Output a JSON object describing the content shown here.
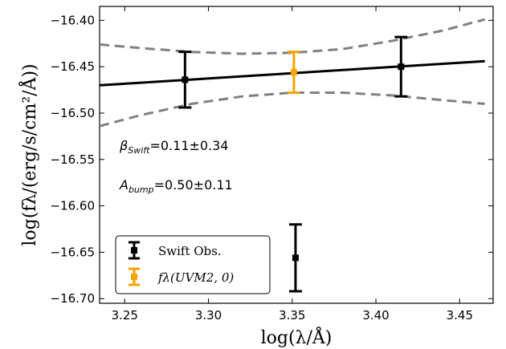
{
  "chart_data": {
    "type": "scatter",
    "xlabel": "log(λ/Å)",
    "ylabel": "log(fλ/(erg/s/cm²/Å))",
    "xlim": [
      3.235,
      3.47
    ],
    "ylim": [
      -16.705,
      -16.385
    ],
    "xticks": [
      3.25,
      3.3,
      3.35,
      3.4,
      3.45
    ],
    "xtick_labels": [
      "3.25",
      "3.30",
      "3.35",
      "3.40",
      "3.45"
    ],
    "yticks": [
      -16.4,
      -16.45,
      -16.5,
      -16.55,
      -16.6,
      -16.65,
      -16.7
    ],
    "ytick_labels": [
      "−16.40",
      "−16.45",
      "−16.50",
      "−16.55",
      "−16.60",
      "−16.65",
      "−16.70"
    ],
    "grid": false,
    "legend_position": "lower-left",
    "series": [
      {
        "name": "Swift Obs.",
        "color": "#000000",
        "points": [
          {
            "x": 3.286,
            "y": -16.464,
            "yerr": 0.03
          },
          {
            "x": 3.415,
            "y": -16.45,
            "yerr": 0.032
          },
          {
            "x": 3.352,
            "y": -16.656,
            "yerr": 0.036
          }
        ]
      },
      {
        "name": "fλ(UVM2, 0)",
        "color": "#f5a300",
        "points": [
          {
            "x": 3.351,
            "y": -16.456,
            "yerr": 0.022
          }
        ]
      }
    ],
    "fit_line": {
      "x": [
        3.235,
        3.465
      ],
      "y": [
        -16.47,
        -16.444
      ],
      "color": "#000000"
    },
    "confidence_band": {
      "color": "#808080",
      "upper": {
        "x": [
          3.235,
          3.26,
          3.29,
          3.32,
          3.35,
          3.38,
          3.41,
          3.44,
          3.465
        ],
        "y": [
          -16.426,
          -16.43,
          -16.434,
          -16.436,
          -16.435,
          -16.431,
          -16.422,
          -16.411,
          -16.399
        ]
      },
      "lower": {
        "x": [
          3.235,
          3.26,
          3.29,
          3.32,
          3.35,
          3.38,
          3.41,
          3.44,
          3.465
        ],
        "y": [
          -16.514,
          -16.502,
          -16.49,
          -16.482,
          -16.478,
          -16.478,
          -16.481,
          -16.486,
          -16.49
        ]
      }
    },
    "annotations": [
      {
        "base": "β",
        "sub": "Swift",
        "text": "=0.11±0.34",
        "x": 3.247,
        "y": -16.54
      },
      {
        "base": "A",
        "sub": "bump",
        "text": "=0.50±0.11",
        "x": 3.247,
        "y": -16.582
      }
    ]
  }
}
